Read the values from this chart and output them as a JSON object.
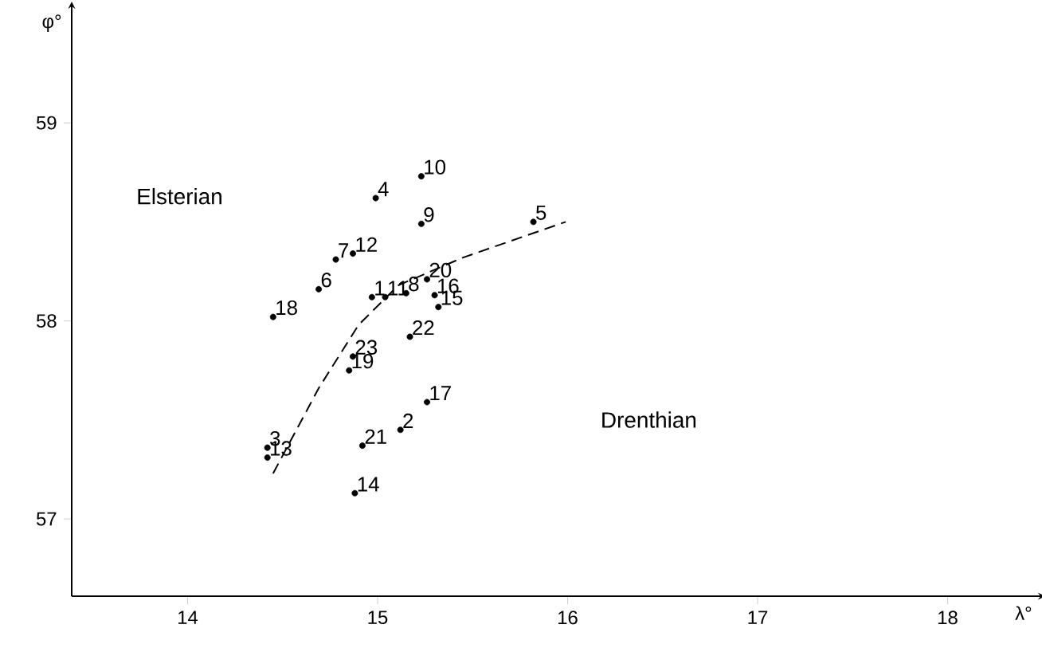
{
  "chart_data": {
    "type": "scatter",
    "xlabel": "λ°",
    "ylabel": "φ°",
    "xlim": [
      13.39,
      18.48
    ],
    "ylim": [
      56.61,
      59.58
    ],
    "xticks": [
      14,
      15,
      16,
      17,
      18
    ],
    "yticks": [
      57,
      58,
      59
    ],
    "grid": false,
    "legend": false,
    "annotations": [
      "Elsterian",
      "Drenthian"
    ],
    "series": [
      {
        "name": "1",
        "color": "#000000",
        "x": [
          14.97
        ],
        "values": [
          58.12
        ]
      },
      {
        "name": "2",
        "color": "#000000",
        "x": [
          15.12
        ],
        "values": [
          57.45
        ]
      },
      {
        "name": "3",
        "color": "#000000",
        "x": [
          14.42
        ],
        "values": [
          57.36
        ]
      },
      {
        "name": "4",
        "color": "#000000",
        "x": [
          14.99
        ],
        "values": [
          58.62
        ]
      },
      {
        "name": "5",
        "color": "#000000",
        "x": [
          15.82
        ],
        "values": [
          58.5
        ]
      },
      {
        "name": "6",
        "color": "#000000",
        "x": [
          14.69
        ],
        "values": [
          58.16
        ]
      },
      {
        "name": "7",
        "color": "#000000",
        "x": [
          14.78
        ],
        "values": [
          58.31
        ]
      },
      {
        "name": "8",
        "color": "#000000",
        "x": [
          15.15
        ],
        "values": [
          58.14
        ]
      },
      {
        "name": "9",
        "color": "#000000",
        "x": [
          15.23
        ],
        "values": [
          58.49
        ]
      },
      {
        "name": "10",
        "color": "#000000",
        "x": [
          15.23
        ],
        "values": [
          58.73
        ]
      },
      {
        "name": "11",
        "color": "#000000",
        "x": [
          15.04
        ],
        "values": [
          58.12
        ]
      },
      {
        "name": "12",
        "color": "#000000",
        "x": [
          14.87
        ],
        "values": [
          58.34
        ]
      },
      {
        "name": "13",
        "color": "#000000",
        "x": [
          14.42
        ],
        "values": [
          57.31
        ]
      },
      {
        "name": "14",
        "color": "#000000",
        "x": [
          14.88
        ],
        "values": [
          57.13
        ]
      },
      {
        "name": "15",
        "color": "#000000",
        "x": [
          15.32
        ],
        "values": [
          58.07
        ]
      },
      {
        "name": "16",
        "color": "#000000",
        "x": [
          15.3
        ],
        "values": [
          58.13
        ]
      },
      {
        "name": "17",
        "color": "#000000",
        "x": [
          15.26
        ],
        "values": [
          57.59
        ]
      },
      {
        "name": "18",
        "color": "#000000",
        "x": [
          14.45
        ],
        "values": [
          58.02
        ]
      },
      {
        "name": "19",
        "color": "#000000",
        "x": [
          14.85
        ],
        "values": [
          57.75
        ]
      },
      {
        "name": "20",
        "color": "#000000",
        "x": [
          15.26
        ],
        "values": [
          58.21
        ]
      },
      {
        "name": "21",
        "color": "#000000",
        "x": [
          14.92
        ],
        "values": [
          57.37
        ]
      },
      {
        "name": "22",
        "color": "#000000",
        "x": [
          15.17
        ],
        "values": [
          57.92
        ]
      },
      {
        "name": "23",
        "color": "#000000",
        "x": [
          14.87
        ],
        "values": [
          57.82
        ]
      },
      {
        "type": "line",
        "color": "#000000",
        "line_style": "dashed",
        "x": [
          14.45,
          14.69,
          14.9,
          15.11,
          15.45,
          15.99
        ],
        "values": [
          57.23,
          57.66,
          57.98,
          58.18,
          58.32,
          58.5
        ]
      }
    ]
  }
}
